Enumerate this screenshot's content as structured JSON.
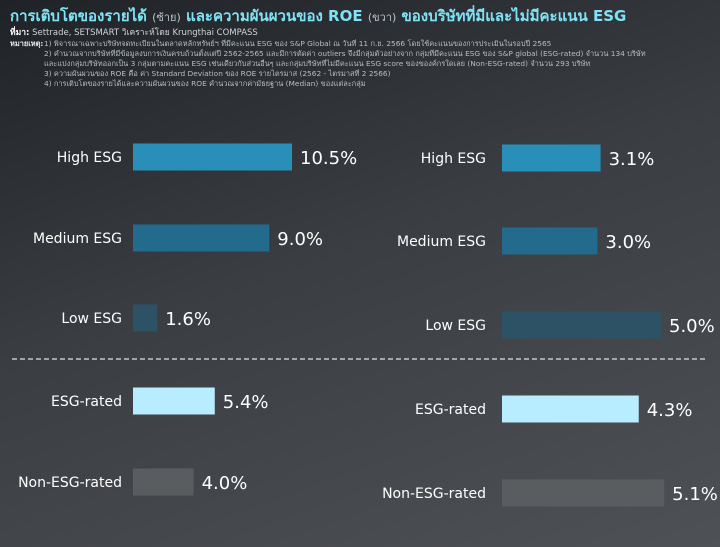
{
  "header": {
    "title_left": "การเติบโตของรายได้",
    "title_left_paren": "(ซ้าย)",
    "title_mid": "และความผันผวนของ ROE",
    "title_right_paren": "(ขวา)",
    "title_right": "ของบริษัทที่มีและไม่มีคะแนน ESG",
    "source_label": "ที่มา:",
    "source_text": "Settrade, SETSMART วิเคราะห์โดย Krungthai COMPASS",
    "notes_label": "หมายเหตุ:",
    "notes": [
      "1) พิจารณาเฉพาะบริษัทจดทะเบียนในตลาดหลักทรัพย์ฯ ที่มีคะแนน ESG ของ S&P Global ณ วันที่ 11 ก.ย. 2566 โดยใช้คะแนนของการประเมินในรอบปี 2565",
      "2) คำนวณจากบริษัทที่มีข้อมูลงบการเงินครบถ้วนตั้งแต่ปี 2562-2565 และมีการตัดค่า outliers จึงมีกลุ่มตัวอย่างจาก กลุ่มที่มีคะแนน ESG ของ S&P global (ESG-rated) จำนวน 134 บริษัท",
      "และแบ่งกลุ่มบริษัทออกเป็น 3 กลุ่มตามคะแนน ESG เช่นเดียวกับส่วนอื่นๆ และกลุ่มบริษัทที่ไม่มีคะแนน ESG score ของของค์กรใดเลย (Non-ESG-rated) จำนวน 293 บริษัท",
      "3) ความผันผวนของ ROE คือ ค่า Standard Deviation ของ ROE รายไตรมาส (2562 - ไตรมาสที่ 2 2566)",
      "4) การเติบโตของรายได้และความผันผวนของ ROE คำนวณจากค่ามัธยฐาน (Median) ของแต่ละกลุ่ม"
    ]
  },
  "chart_data": [
    {
      "type": "bar",
      "orientation": "horizontal",
      "categories": [
        "High ESG",
        "Medium ESG",
        "Low ESG",
        "ESG-rated",
        "Non-ESG-rated"
      ],
      "values": [
        10.5,
        9.0,
        1.6,
        5.4,
        4.0
      ],
      "value_labels": [
        "10.5%",
        "9.0%",
        "1.6%",
        "5.4%",
        "4.0%"
      ],
      "colors": [
        "#2a8fb8",
        "#236b8c",
        "#2d5266",
        "#b8ecff",
        "#5a5d60"
      ]
    },
    {
      "type": "bar",
      "orientation": "horizontal",
      "categories": [
        "High ESG",
        "Medium ESG",
        "Low ESG",
        "ESG-rated",
        "Non-ESG-rated"
      ],
      "values": [
        3.1,
        3.0,
        5.0,
        4.3,
        5.1
      ],
      "value_labels": [
        "3.1%",
        "3.0%",
        "5.0%",
        "4.3%",
        "5.1%"
      ],
      "colors": [
        "#2a8fb8",
        "#236b8c",
        "#2d5266",
        "#b8ecff",
        "#5a5d60"
      ]
    }
  ]
}
